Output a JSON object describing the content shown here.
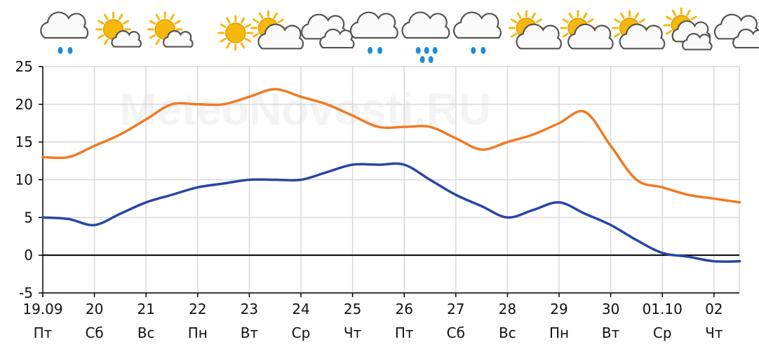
{
  "watermark": "MeteoNovosti.RU",
  "colors": {
    "max_line": "#f07a24",
    "min_line": "#2747a6",
    "grid": "#d9d9d9",
    "zero": "#000000",
    "rain": "#1a8fd8",
    "sun": "#f6b80d"
  },
  "weather_icons": [
    {
      "name": "cloud-rain-icon",
      "kind": "cloud-rain",
      "drops": 2
    },
    {
      "name": "sun-cloud-icon",
      "kind": "sun-cloud"
    },
    {
      "name": "sun-cloud-icon",
      "kind": "sun-cloud"
    },
    {
      "name": "sun-icon",
      "kind": "sun"
    },
    {
      "name": "sun-cloud-icon",
      "kind": "sun-bigcloud"
    },
    {
      "name": "clouds-icon",
      "kind": "clouds"
    },
    {
      "name": "cloud-rain-icon",
      "kind": "cloud-rain",
      "drops": 2
    },
    {
      "name": "cloud-heavy-rain-icon",
      "kind": "cloud-rain",
      "drops": 5
    },
    {
      "name": "cloud-rain-icon",
      "kind": "cloud-rain",
      "drops": 2
    },
    {
      "name": "sun-cloud-icon",
      "kind": "sun-bigcloud"
    },
    {
      "name": "sun-cloud-icon",
      "kind": "sun-bigcloud"
    },
    {
      "name": "sun-cloud-icon",
      "kind": "sun-bigcloud"
    },
    {
      "name": "sun-clouds-icon",
      "kind": "sun-clouds"
    },
    {
      "name": "clouds-icon",
      "kind": "clouds"
    }
  ],
  "chart_data": {
    "type": "line",
    "title": "",
    "xlabel": "",
    "ylabel": "",
    "ylim": [
      -5,
      25
    ],
    "yticks": [
      -5,
      0,
      5,
      10,
      15,
      20,
      25
    ],
    "xlim": [
      0,
      13.5
    ],
    "grid": true,
    "legend": "none",
    "categories": [
      {
        "date": "19.09",
        "day": "Пт"
      },
      {
        "date": "20",
        "day": "Сб"
      },
      {
        "date": "21",
        "day": "Вс"
      },
      {
        "date": "22",
        "day": "Пн"
      },
      {
        "date": "23",
        "day": "Вт"
      },
      {
        "date": "24",
        "day": "Ср"
      },
      {
        "date": "25",
        "day": "Чт"
      },
      {
        "date": "26",
        "day": "Пт"
      },
      {
        "date": "27",
        "day": "Сб"
      },
      {
        "date": "28",
        "day": "Вс"
      },
      {
        "date": "29",
        "day": "Пн"
      },
      {
        "date": "30",
        "day": "Вт"
      },
      {
        "date": "01.10",
        "day": "Ср"
      },
      {
        "date": "02",
        "day": "Чт"
      }
    ],
    "series": [
      {
        "key": "max",
        "x": [
          0,
          0.5,
          1,
          1.5,
          2,
          2.5,
          3,
          3.5,
          4,
          4.5,
          5,
          5.5,
          6,
          6.5,
          7,
          7.5,
          8,
          8.5,
          9,
          9.5,
          10,
          10.5,
          11,
          11.5,
          12,
          12.5,
          13,
          13.5
        ],
        "values": [
          13,
          13,
          14.5,
          16,
          18,
          20,
          20,
          20,
          21,
          22,
          21,
          20,
          18.5,
          17,
          17,
          17,
          15.5,
          14,
          15,
          16,
          17.5,
          19,
          14.5,
          10,
          9,
          8,
          7.5,
          7
        ]
      },
      {
        "key": "min",
        "x": [
          0,
          0.5,
          1,
          1.5,
          2,
          2.5,
          3,
          3.5,
          4,
          4.5,
          5,
          5.5,
          6,
          6.5,
          7,
          7.5,
          8,
          8.5,
          9,
          9.5,
          10,
          10.5,
          11,
          11.5,
          12,
          12.5,
          13,
          13.5
        ],
        "values": [
          5,
          4.8,
          4,
          5.5,
          7,
          8,
          9,
          9.5,
          10,
          10,
          10,
          11,
          12,
          12,
          12,
          10,
          8,
          6.5,
          5,
          6,
          7,
          5.5,
          4,
          2,
          0.3,
          -0.2,
          -0.8,
          -0.8
        ]
      }
    ]
  }
}
